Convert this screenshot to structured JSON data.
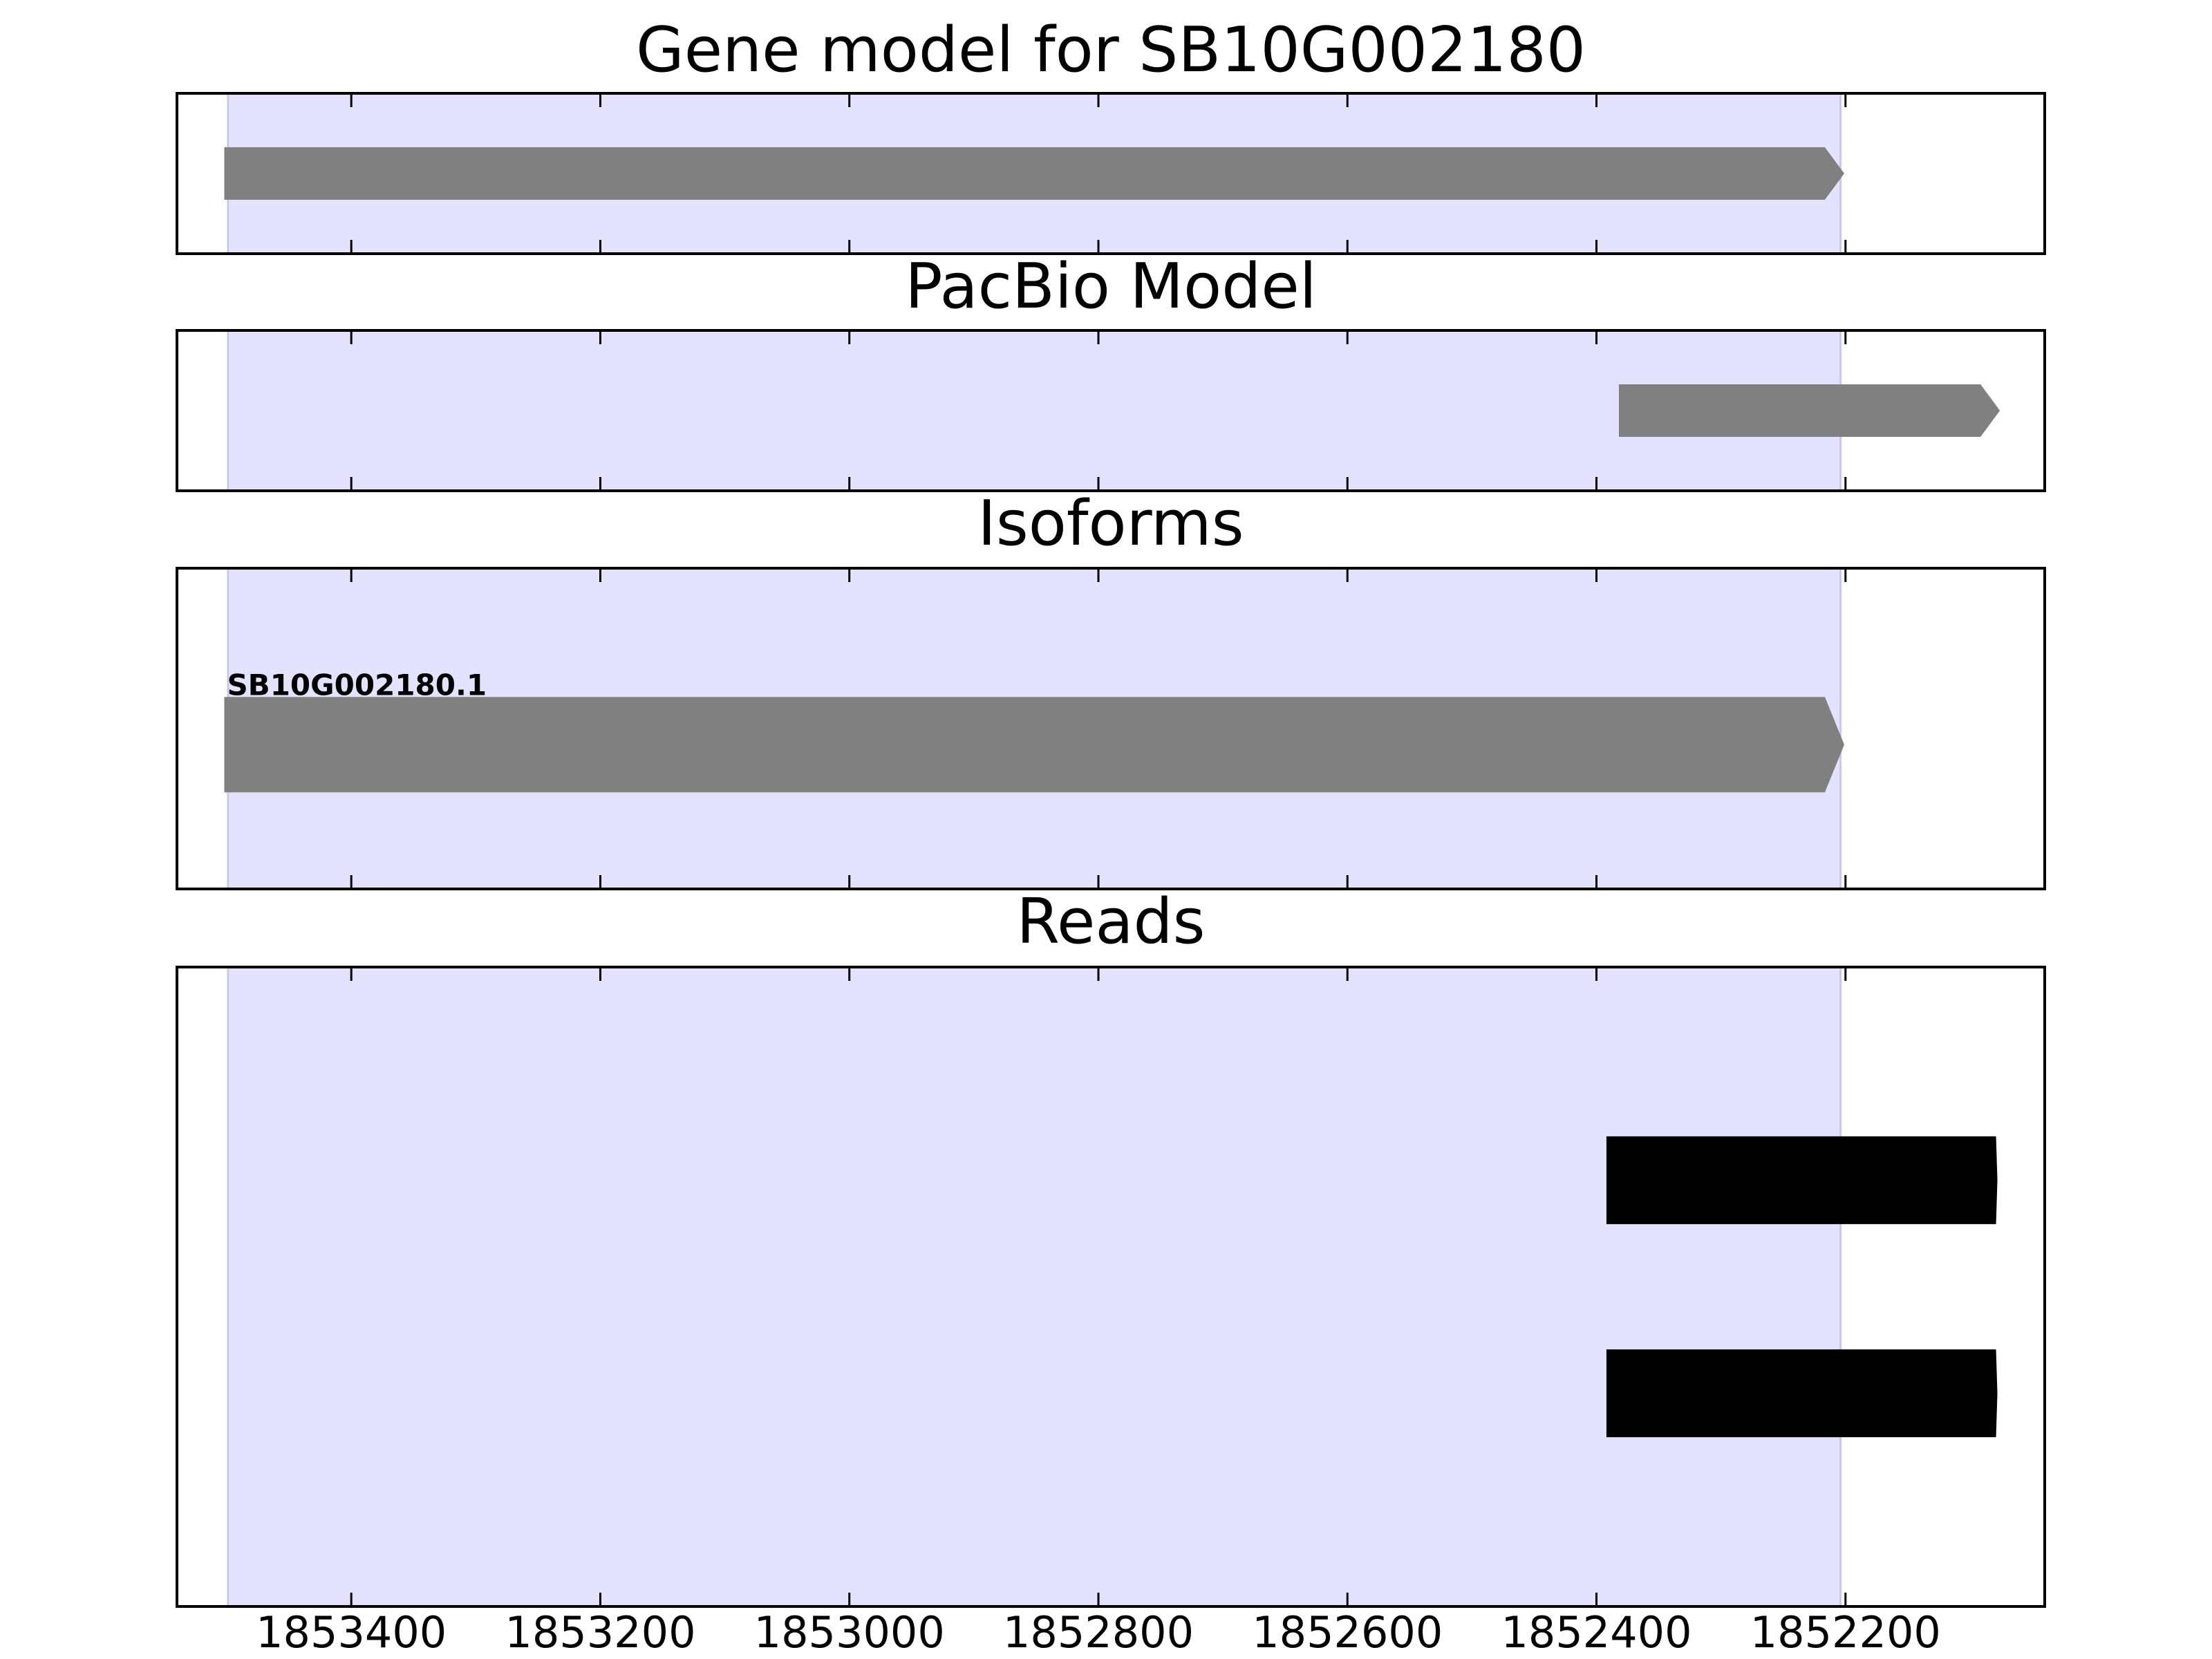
{
  "chart_data": {
    "type": "gene_tracks",
    "xlim": [
      1853540,
      1852040
    ],
    "xticks": [
      1853400,
      1853200,
      1853000,
      1852800,
      1852600,
      1852400,
      1852200
    ],
    "highlight": [
      1853499,
      1852204
    ],
    "highlight_color": "#e3e3ff",
    "tracks": [
      {
        "title": "Gene model for SB10G002180",
        "color": "#808080",
        "features": [
          {
            "start": 1853502,
            "end": 1852201
          }
        ]
      },
      {
        "title": "PacBio Model",
        "color": "#808080",
        "features": [
          {
            "start": 1852382,
            "end": 1852076
          }
        ]
      },
      {
        "title": "Isoforms",
        "color": "#808080",
        "features": [
          {
            "start": 1853502,
            "end": 1852201,
            "label": "SB10G002180.1"
          }
        ]
      },
      {
        "title": "Reads",
        "color": "#000000",
        "features": [
          {
            "start": 1852392,
            "end": 1852078
          },
          {
            "start": 1852392,
            "end": 1852078
          }
        ]
      }
    ]
  }
}
